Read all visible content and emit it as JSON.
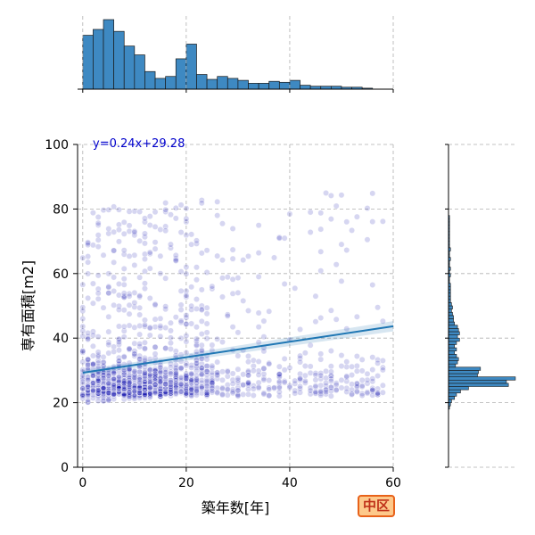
{
  "chart_data": {
    "type": "scatter",
    "title": "",
    "xlabel": "築年数[年]",
    "ylabel": "専有面積[m2]",
    "xlim": [
      -1,
      60
    ],
    "ylim": [
      0,
      100
    ],
    "xticks": [
      0,
      20,
      40,
      60
    ],
    "yticks": [
      0,
      20,
      40,
      60,
      80,
      100
    ],
    "grid": true,
    "grid_style": "dashed",
    "point_color": "#0000aa",
    "regression": {
      "equation_label": "y=0.24x+29.28",
      "slope": 0.24,
      "intercept": 29.28,
      "x_range": [
        0,
        60
      ],
      "line_color": "#1f77b4",
      "label_color": "#0000cc"
    },
    "marginal_x": {
      "type": "histogram",
      "bin_start": 0,
      "bin_width": 2,
      "counts": [
        55,
        61,
        71,
        59,
        44,
        35,
        18,
        11,
        13,
        31,
        46,
        15,
        10,
        13,
        11,
        9,
        6,
        6,
        8,
        7,
        9,
        4,
        3,
        3,
        3,
        2,
        2,
        1,
        0
      ],
      "bar_color": "#3e89c2"
    },
    "marginal_y": {
      "type": "histogram",
      "bins": [
        [
          18,
          19,
          1
        ],
        [
          19,
          20,
          2
        ],
        [
          20,
          21,
          3
        ],
        [
          21,
          22,
          6
        ],
        [
          22,
          23,
          8
        ],
        [
          23,
          24,
          12
        ],
        [
          24,
          25,
          20
        ],
        [
          25,
          26,
          60
        ],
        [
          26,
          27,
          58
        ],
        [
          27,
          28,
          67
        ],
        [
          28,
          29,
          29
        ],
        [
          29,
          30,
          30
        ],
        [
          30,
          31,
          32
        ],
        [
          31,
          32,
          7
        ],
        [
          32,
          33,
          9
        ],
        [
          33,
          34,
          10
        ],
        [
          34,
          35,
          8
        ],
        [
          35,
          36,
          6
        ],
        [
          36,
          37,
          8
        ],
        [
          37,
          38,
          6
        ],
        [
          38,
          39,
          8
        ],
        [
          39,
          40,
          11
        ],
        [
          40,
          41,
          9
        ],
        [
          41,
          42,
          11
        ],
        [
          42,
          43,
          10
        ],
        [
          43,
          44,
          9
        ],
        [
          44,
          45,
          6
        ],
        [
          45,
          46,
          5
        ],
        [
          46,
          47,
          5
        ],
        [
          47,
          48,
          4
        ],
        [
          48,
          49,
          3
        ],
        [
          49,
          50,
          4
        ],
        [
          50,
          51,
          3
        ],
        [
          51,
          52,
          2
        ],
        [
          52,
          53,
          2
        ],
        [
          53,
          54,
          2
        ],
        [
          54,
          55,
          2
        ],
        [
          55,
          56,
          2
        ],
        [
          56,
          57,
          2
        ],
        [
          57,
          58,
          1
        ],
        [
          58,
          59,
          1
        ],
        [
          59,
          60,
          2
        ],
        [
          60,
          61,
          1
        ],
        [
          61,
          62,
          2
        ],
        [
          62,
          63,
          1
        ],
        [
          63,
          64,
          1
        ],
        [
          64,
          65,
          2
        ],
        [
          65,
          66,
          1
        ],
        [
          66,
          67,
          1
        ],
        [
          67,
          68,
          2
        ],
        [
          68,
          69,
          1
        ],
        [
          69,
          70,
          1
        ],
        [
          70,
          71,
          1
        ],
        [
          71,
          72,
          1
        ],
        [
          72,
          73,
          1
        ],
        [
          73,
          74,
          1
        ],
        [
          74,
          75,
          1
        ],
        [
          75,
          76,
          1
        ],
        [
          76,
          77,
          1
        ],
        [
          77,
          78,
          1
        ]
      ],
      "bar_color": "#3e89c2"
    }
  },
  "region_badge": {
    "label": "中区",
    "fill": "#fdc98b",
    "border": "#e8621a",
    "text_color": "#c0321a"
  }
}
